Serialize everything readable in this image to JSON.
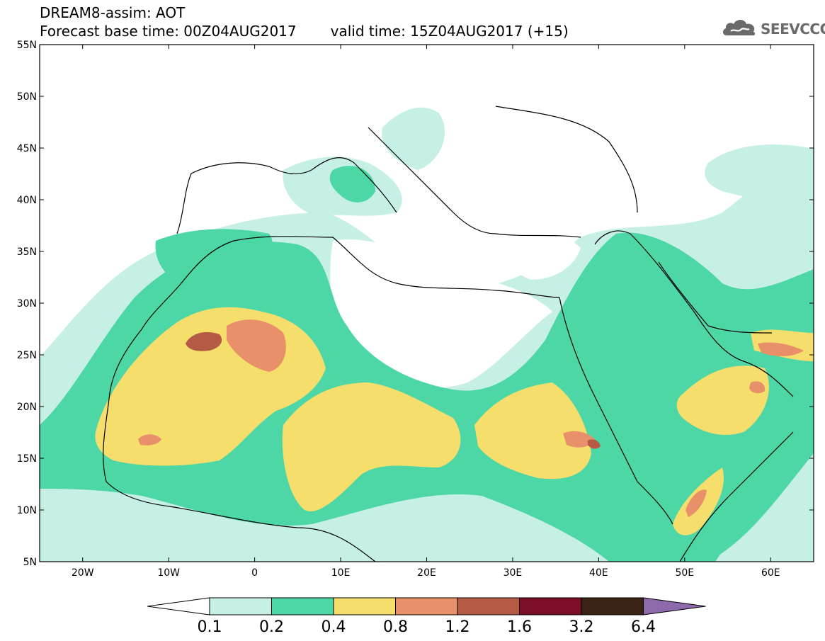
{
  "header": {
    "line1": "DREAM8-assim: AOT",
    "base_time": "Forecast base time: 00Z04AUG2017",
    "valid_time": "valid time: 15Z04AUG2017 (+15)"
  },
  "logo": {
    "text": "SEEVCCC",
    "icon": "cloud-logo-icon"
  },
  "map": {
    "lon_range": [
      -25,
      65
    ],
    "lat_range": [
      5,
      55
    ],
    "lat_ticks": [
      "5N",
      "10N",
      "15N",
      "20N",
      "25N",
      "30N",
      "35N",
      "40N",
      "45N",
      "50N",
      "55N"
    ],
    "lon_ticks": [
      "20W",
      "10W",
      "0",
      "10E",
      "20E",
      "30E",
      "40E",
      "50E",
      "60E"
    ]
  },
  "colorbar": {
    "labels": [
      "0.1",
      "0.2",
      "0.4",
      "0.8",
      "1.2",
      "1.6",
      "3.2",
      "6.4"
    ],
    "colors": [
      "#ffffff",
      "#c6efe6",
      "#4dd6a6",
      "#f5de6b",
      "#e8906a",
      "#b55a44",
      "#7a0f27",
      "#3b2415",
      "#8e6aad"
    ]
  },
  "palette": {
    "c01": "#c6efe6",
    "c02": "#4dd6a6",
    "c04": "#f5de6b",
    "c08": "#e8906a",
    "c12": "#b55a44",
    "c16": "#7a0f27"
  }
}
